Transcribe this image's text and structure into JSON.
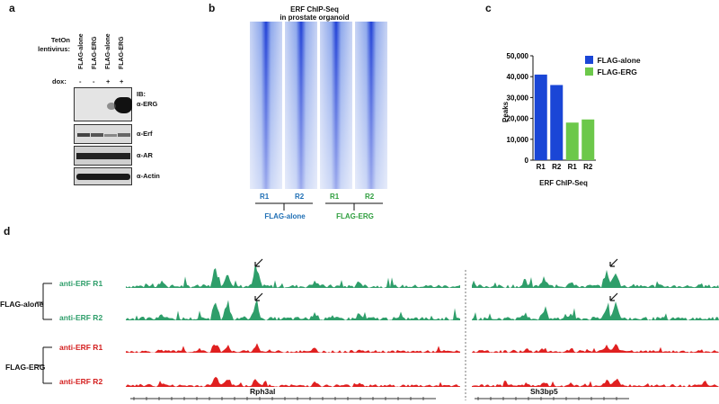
{
  "panels": {
    "a": "a",
    "b": "b",
    "c": "c",
    "d": "d"
  },
  "panel_a": {
    "row_label": "TetOn lentivirus:",
    "lanes": [
      "FLAG-alone",
      "FLAG-ERG",
      "FLAG-alone",
      "FLAG-ERG"
    ],
    "dox_label": "dox:",
    "dox": [
      "-",
      "-",
      "+",
      "+"
    ],
    "ib_label": "IB:",
    "blots": [
      "α-ERG",
      "α-Erf",
      "α-AR",
      "α-Actin"
    ]
  },
  "panel_b": {
    "title_line1": "ERF ChIP-Seq",
    "title_line2": "in prostate organoid",
    "replicates": [
      "R1",
      "R2",
      "R1",
      "R2"
    ],
    "group1": "FLAG-alone",
    "group2": "FLAG-ERG",
    "color_group1": "#1f6fb5",
    "color_group2": "#2e9e3e"
  },
  "chart_data": {
    "type": "bar",
    "ylabel": "Peaks",
    "xlabel": "ERF ChIP-Seq",
    "categories": [
      "R1",
      "R2",
      "R1",
      "R2"
    ],
    "values": [
      41000,
      36000,
      18000,
      19500
    ],
    "ylim": [
      0,
      50000
    ],
    "yticks": [
      "0",
      "10,000",
      "20,000",
      "30,000",
      "40,000",
      "50,000"
    ],
    "legend": [
      {
        "name": "FLAG-alone",
        "color": "#1a46d6"
      },
      {
        "name": "FLAG-ERG",
        "color": "#6cc84a"
      }
    ],
    "bar_colors": [
      "#1a46d6",
      "#1a46d6",
      "#6cc84a",
      "#6cc84a"
    ],
    "legend_placement": "top-right"
  },
  "panel_d": {
    "group1": "FLAG-alone",
    "group2": "FLAG-ERG",
    "tracks": [
      {
        "label": "anti-ERF R1",
        "color": "#2e9e6a"
      },
      {
        "label": "anti-ERF R2",
        "color": "#2e9e6a"
      },
      {
        "label": "anti-ERF R1",
        "color": "#e02020"
      },
      {
        "label": "anti-ERF R2",
        "color": "#e02020"
      }
    ],
    "genes": [
      "Rph3al",
      "Sh3bp5"
    ]
  }
}
